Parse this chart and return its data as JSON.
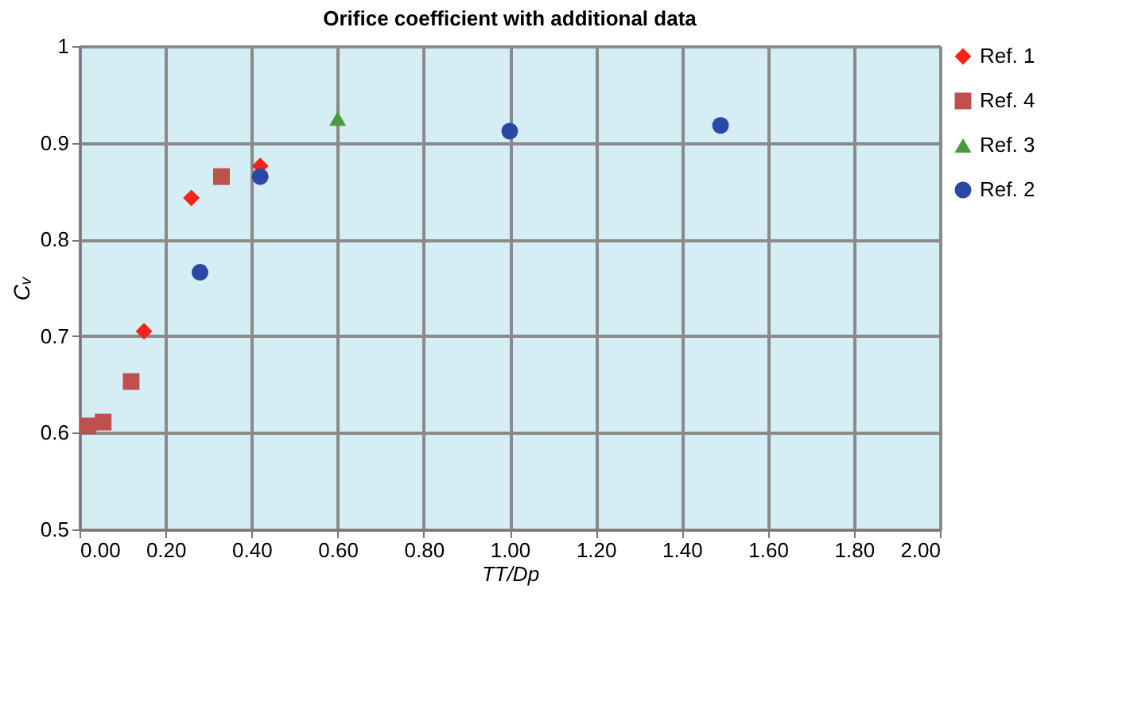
{
  "chart_data": {
    "type": "scatter",
    "title": "Orifice coefficient with additional data",
    "xlabel": "TT/Dp",
    "ylabel": "Cᵥ",
    "xlim": [
      0,
      2
    ],
    "ylim": [
      0.5,
      1
    ],
    "xticks": [
      {
        "value": 0,
        "label": "0.00"
      },
      {
        "value": 0.2,
        "label": "0.20"
      },
      {
        "value": 0.4,
        "label": "0.40"
      },
      {
        "value": 0.6,
        "label": "0.60"
      },
      {
        "value": 0.8,
        "label": "0.80"
      },
      {
        "value": 1,
        "label": "1.00"
      },
      {
        "value": 1.2,
        "label": "1.20"
      },
      {
        "value": 1.4,
        "label": "1.40"
      },
      {
        "value": 1.6,
        "label": "1.60"
      },
      {
        "value": 1.8,
        "label": "1.80"
      },
      {
        "value": 2,
        "label": "2.00"
      }
    ],
    "yticks": [
      0.5,
      0.6,
      0.7,
      0.8,
      0.9,
      1
    ],
    "grid": true,
    "legend": "right",
    "series": [
      {
        "name": "Ref. 1",
        "color": "#f5231a",
        "marker": "diamond",
        "x": [
          0.15,
          0.26,
          0.42
        ],
        "values": [
          0.705,
          0.843,
          0.876
        ]
      },
      {
        "name": "Ref. 4",
        "color": "#c0504d",
        "marker": "square",
        "x": [
          0.02,
          0.055,
          0.12,
          0.33
        ],
        "values": [
          0.607,
          0.611,
          0.653,
          0.865
        ]
      },
      {
        "name": "Ref. 3",
        "color": "#4a9a3a",
        "marker": "triangle",
        "x": [
          0.6
        ],
        "values": [
          0.925
        ]
      },
      {
        "name": "Ref. 2",
        "color": "#2a48a6",
        "marker": "circle",
        "x": [
          0.28,
          0.42,
          1.0,
          1.49
        ],
        "values": [
          0.766,
          0.865,
          0.912,
          0.918
        ]
      }
    ]
  }
}
